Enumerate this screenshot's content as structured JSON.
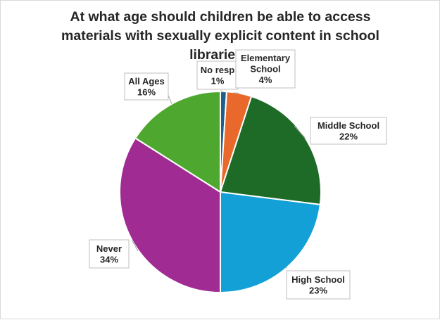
{
  "chart_data": {
    "type": "pie",
    "title_lines": [
      "At what age should children be able to access",
      "materials with sexually explicit content in school",
      "libraries?"
    ],
    "slices": [
      {
        "label_lines": [
          "No resp",
          "1%"
        ],
        "value": 1,
        "percent_label": "1%",
        "color": "#1f5f8b"
      },
      {
        "label_lines": [
          "Elementary",
          "School",
          "4%"
        ],
        "value": 4,
        "percent_label": "4%",
        "color": "#e8692b"
      },
      {
        "label_lines": [
          "Middle School",
          "22%"
        ],
        "value": 22,
        "percent_label": "22%",
        "color": "#1e6b28"
      },
      {
        "label_lines": [
          "High School",
          "23%"
        ],
        "value": 23,
        "percent_label": "23%",
        "color": "#13a0d6"
      },
      {
        "label_lines": [
          "Never",
          "34%"
        ],
        "value": 34,
        "percent_label": "34%",
        "color": "#a02b93"
      },
      {
        "label_lines": [
          "All Ages",
          "16%"
        ],
        "value": 16,
        "percent_label": "16%",
        "color": "#4ea72e"
      }
    ],
    "start_angle_deg": 0,
    "direction": "clockwise",
    "data_labels": "callout boxes with leader lines",
    "legend": "none"
  }
}
